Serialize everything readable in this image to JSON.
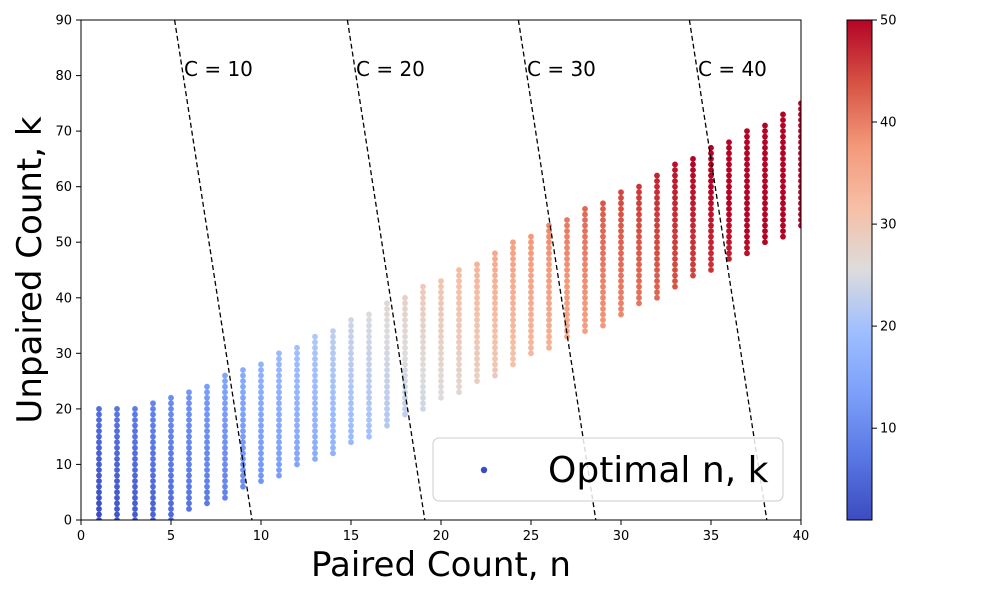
{
  "chart_data": {
    "type": "scatter",
    "title": "",
    "xlabel": "Paired Count, n",
    "ylabel": "Unpaired Count, k",
    "xlim": [
      0,
      40
    ],
    "ylim": [
      0,
      90
    ],
    "xticks": [
      "0",
      "5",
      "10",
      "15",
      "20",
      "25",
      "30",
      "35",
      "40"
    ],
    "yticks": [
      "0",
      "10",
      "20",
      "30",
      "40",
      "50",
      "60",
      "70",
      "80",
      "90"
    ],
    "grid": false,
    "legend": {
      "label": "Optimal n, k",
      "position": "lower-right"
    },
    "colorbar": {
      "colormap": "coolwarm",
      "range": [
        1,
        50
      ],
      "ticks": [
        "10",
        "20",
        "30",
        "40",
        "50"
      ]
    },
    "series": [
      {
        "name": "Optimal n, k",
        "color_by": "n + k/4",
        "columns": [
          {
            "n": 1,
            "k_min": 0,
            "k_max": 20
          },
          {
            "n": 2,
            "k_min": 0,
            "k_max": 20
          },
          {
            "n": 3,
            "k_min": 0,
            "k_max": 20
          },
          {
            "n": 4,
            "k_min": 0,
            "k_max": 21
          },
          {
            "n": 5,
            "k_min": 0,
            "k_max": 22
          },
          {
            "n": 6,
            "k_min": 2,
            "k_max": 23
          },
          {
            "n": 7,
            "k_min": 3,
            "k_max": 24
          },
          {
            "n": 8,
            "k_min": 4,
            "k_max": 26
          },
          {
            "n": 9,
            "k_min": 6,
            "k_max": 27
          },
          {
            "n": 10,
            "k_min": 7,
            "k_max": 28
          },
          {
            "n": 11,
            "k_min": 8,
            "k_max": 30
          },
          {
            "n": 12,
            "k_min": 10,
            "k_max": 31
          },
          {
            "n": 13,
            "k_min": 11,
            "k_max": 33
          },
          {
            "n": 14,
            "k_min": 12,
            "k_max": 34
          },
          {
            "n": 15,
            "k_min": 14,
            "k_max": 36
          },
          {
            "n": 16,
            "k_min": 15,
            "k_max": 37
          },
          {
            "n": 17,
            "k_min": 17,
            "k_max": 39
          },
          {
            "n": 18,
            "k_min": 19,
            "k_max": 40
          },
          {
            "n": 19,
            "k_min": 20,
            "k_max": 42
          },
          {
            "n": 20,
            "k_min": 22,
            "k_max": 43
          },
          {
            "n": 21,
            "k_min": 23,
            "k_max": 45
          },
          {
            "n": 22,
            "k_min": 25,
            "k_max": 46
          },
          {
            "n": 23,
            "k_min": 26,
            "k_max": 48
          },
          {
            "n": 24,
            "k_min": 28,
            "k_max": 50
          },
          {
            "n": 25,
            "k_min": 30,
            "k_max": 51
          },
          {
            "n": 26,
            "k_min": 31,
            "k_max": 53
          },
          {
            "n": 27,
            "k_min": 33,
            "k_max": 54
          },
          {
            "n": 28,
            "k_min": 34,
            "k_max": 56
          },
          {
            "n": 29,
            "k_min": 35,
            "k_max": 57
          },
          {
            "n": 30,
            "k_min": 37,
            "k_max": 59
          },
          {
            "n": 31,
            "k_min": 39,
            "k_max": 60
          },
          {
            "n": 32,
            "k_min": 40,
            "k_max": 62
          },
          {
            "n": 33,
            "k_min": 42,
            "k_max": 64
          },
          {
            "n": 34,
            "k_min": 44,
            "k_max": 65
          },
          {
            "n": 35,
            "k_min": 45,
            "k_max": 67
          },
          {
            "n": 36,
            "k_min": 47,
            "k_max": 68
          },
          {
            "n": 37,
            "k_min": 48,
            "k_max": 70
          },
          {
            "n": 38,
            "k_min": 50,
            "k_max": 71
          },
          {
            "n": 39,
            "k_min": 51,
            "k_max": 73
          },
          {
            "n": 40,
            "k_min": 53,
            "k_max": 75
          }
        ]
      }
    ],
    "contours": [
      {
        "label": "C = 10",
        "n_at_k90": 5.2,
        "n_at_k0": 9.5
      },
      {
        "label": "C = 20",
        "n_at_k90": 14.8,
        "n_at_k0": 19.1
      },
      {
        "label": "C = 30",
        "n_at_k90": 24.3,
        "n_at_k0": 28.6
      },
      {
        "label": "C = 40",
        "n_at_k90": 33.8,
        "n_at_k0": 38.1
      }
    ]
  }
}
